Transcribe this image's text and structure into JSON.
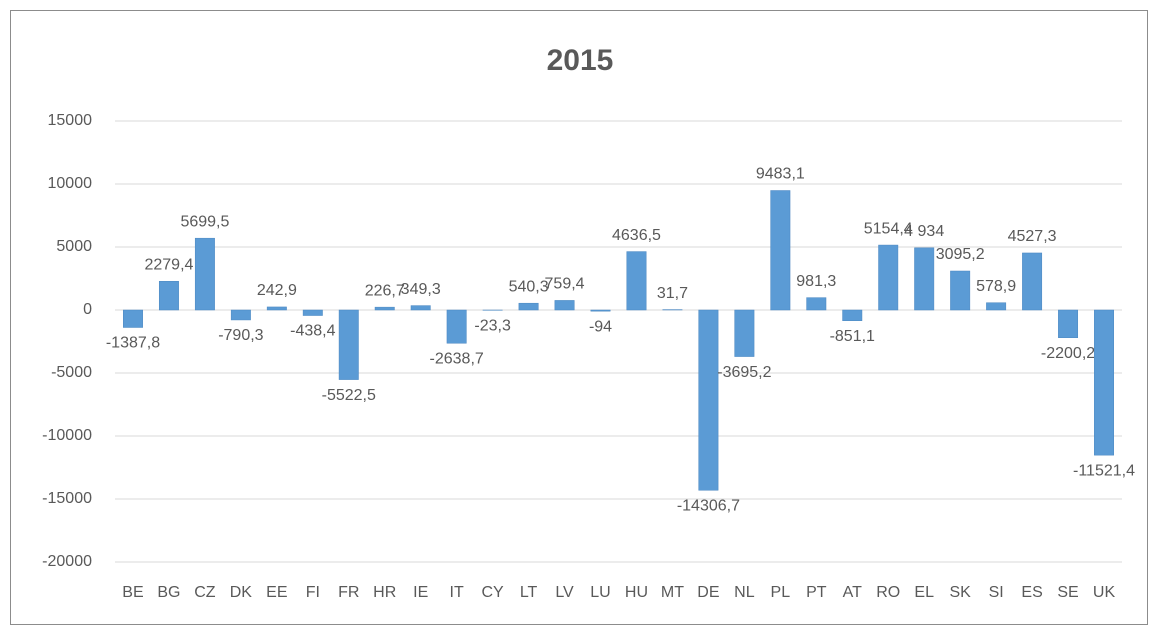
{
  "chart_data": {
    "type": "bar",
    "title": "2015",
    "categories": [
      "BE",
      "BG",
      "CZ",
      "DK",
      "EE",
      "FI",
      "FR",
      "HR",
      "IE",
      "IT",
      "CY",
      "LT",
      "LV",
      "LU",
      "HU",
      "MT",
      "DE",
      "NL",
      "PL",
      "PT",
      "AT",
      "RO",
      "EL",
      "SK",
      "SI",
      "ES",
      "SE",
      "UK"
    ],
    "values": [
      -1387.8,
      2279.4,
      5699.5,
      -790.3,
      242.9,
      -438.4,
      -5522.5,
      226.7,
      349.3,
      -2638.7,
      -23.3,
      540.3,
      759.4,
      -94,
      4636.5,
      31.7,
      -14306.7,
      -3695.2,
      9483.1,
      981.3,
      -851.1,
      5154.4,
      4934,
      3095.2,
      578.9,
      4527.3,
      -2200.2,
      -11521.4
    ],
    "value_labels": [
      "-1387,8",
      "2279,4",
      "5699,5",
      "-790,3",
      "242,9",
      "-438,4",
      "-5522,5",
      "226,7",
      "349,3",
      "-2638,7",
      "-23,3",
      "540,3",
      "759,4",
      "-94",
      "4636,5",
      "31,7",
      "-14306,7",
      "-3695,2",
      "9483,1",
      "981,3",
      "-851,1",
      "5154,4",
      "4 934",
      "3095,2",
      "578,9",
      "4527,3",
      "-2200,2",
      "-11521,4"
    ],
    "color": "#5b9bd5",
    "ylim": [
      -20000,
      15000
    ],
    "yticks": [
      -20000,
      -15000,
      -10000,
      -5000,
      0,
      5000,
      10000,
      15000
    ],
    "grid": true
  }
}
